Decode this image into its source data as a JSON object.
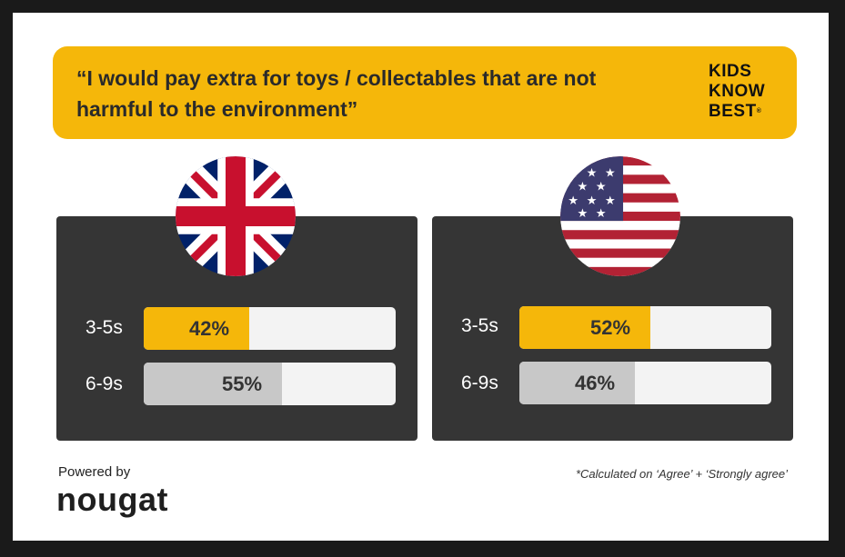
{
  "banner": {
    "quote": "“I would pay extra for toys / collectables that are not harmful to the environment”",
    "logo_lines": [
      "KIDS",
      "KNOW",
      "BEST"
    ],
    "logo_mark": "®"
  },
  "colors": {
    "accent": "#f5b70a",
    "secondary_bar": "#c8c8c8",
    "panel": "#353535"
  },
  "chart_data": {
    "type": "bar",
    "orientation": "horizontal",
    "unit": "%",
    "ylim": [
      0,
      100
    ],
    "panels": [
      {
        "flag": "uk-flag-icon",
        "categories": [
          "3-5s",
          "6-9s"
        ],
        "values": [
          42,
          55
        ],
        "labels": [
          "42%",
          "55%"
        ]
      },
      {
        "flag": "us-flag-icon",
        "categories": [
          "3-5s",
          "6-9s"
        ],
        "values": [
          52,
          46
        ],
        "labels": [
          "52%",
          "46%"
        ]
      }
    ]
  },
  "footer": {
    "powered_by": "Powered by",
    "brand": "nougat",
    "footnote": "*Calculated on ‘Agree’ + ‘Strongly agree’"
  }
}
